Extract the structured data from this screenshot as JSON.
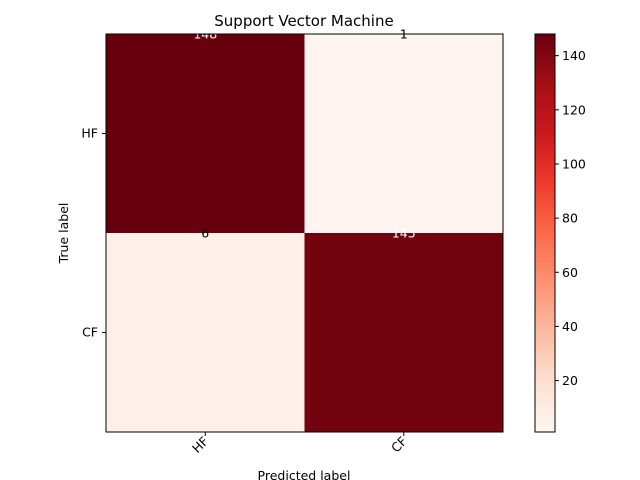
{
  "chart_data": {
    "type": "heatmap",
    "title": "Support Vector Machine",
    "xlabel": "Predicted label",
    "ylabel": "True label",
    "row_labels": [
      "HF",
      "CF"
    ],
    "col_labels": [
      "HF",
      "CF"
    ],
    "values": [
      [
        148,
        1
      ],
      [
        6,
        145
      ]
    ],
    "colormap": "Reds",
    "color_low": "#fff5f0",
    "color_high": "#67000d",
    "colorbar": {
      "min": 1,
      "max": 148,
      "ticks": [
        20,
        40,
        60,
        80,
        100,
        120,
        140
      ]
    },
    "text_color_dark": "#ffffff",
    "text_color_light": "#000000"
  }
}
